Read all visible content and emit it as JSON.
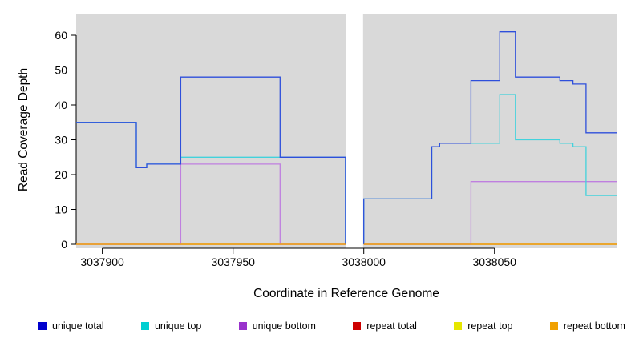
{
  "figure": {
    "x_axis_label": "Coordinate in Reference Genome",
    "y_axis_label": "Read Coverage Depth"
  },
  "chart_data": {
    "type": "line",
    "subtype": "step-coverage-plot",
    "title": "",
    "xlabel": "Coordinate in Reference Genome",
    "ylabel": "Read Coverage Depth",
    "xlim": [
      3037890,
      3038097
    ],
    "ylim": [
      0,
      66
    ],
    "x_ticks": [
      3037900,
      3037950,
      3038000,
      3038050
    ],
    "y_ticks": [
      0,
      10,
      20,
      30,
      40,
      50,
      60
    ],
    "grid": false,
    "background": "#d9d9d9",
    "gap": {
      "from": 3037993,
      "to": 3038000
    },
    "legend_position": "bottom",
    "series": [
      {
        "name": "repeat total",
        "color": "#cc1111",
        "segments": [
          [
            [
              3037890,
              0
            ],
            [
              3037993,
              0
            ]
          ],
          [
            [
              3038000,
              0
            ],
            [
              3038097,
              0
            ]
          ]
        ]
      },
      {
        "name": "repeat top",
        "color": "#e8e800",
        "segments": [
          [
            [
              3037890,
              0
            ],
            [
              3037993,
              0
            ]
          ],
          [
            [
              3038000,
              0
            ],
            [
              3038097,
              0
            ]
          ]
        ]
      },
      {
        "name": "unique bottom",
        "color": "#bf7fdf",
        "segments": [
          [
            [
              3037890,
              0
            ],
            [
              3037930,
              23
            ],
            [
              3037968,
              0
            ],
            [
              3037993,
              0
            ]
          ],
          [
            [
              3038000,
              0
            ],
            [
              3038041,
              18
            ],
            [
              3038097,
              18
            ]
          ]
        ]
      },
      {
        "name": "unique top",
        "color": "#42d2dc",
        "segments": [
          [
            [
              3037890,
              35
            ],
            [
              3037913,
              22
            ],
            [
              3037917,
              23
            ],
            [
              3037930,
              25
            ],
            [
              3037993,
              0
            ]
          ],
          [
            [
              3038000,
              0
            ],
            [
              3038000,
              13
            ],
            [
              3038026,
              28
            ],
            [
              3038029,
              29
            ],
            [
              3038052,
              43
            ],
            [
              3038058,
              30
            ],
            [
              3038075,
              29
            ],
            [
              3038080,
              28
            ],
            [
              3038085,
              14
            ],
            [
              3038097,
              14
            ]
          ]
        ]
      },
      {
        "name": "unique total",
        "color": "#2e4fdb",
        "segments": [
          [
            [
              3037890,
              35
            ],
            [
              3037913,
              22
            ],
            [
              3037917,
              23
            ],
            [
              3037930,
              48
            ],
            [
              3037968,
              25
            ],
            [
              3037993,
              0
            ]
          ],
          [
            [
              3038000,
              0
            ],
            [
              3038000,
              13
            ],
            [
              3038026,
              28
            ],
            [
              3038029,
              29
            ],
            [
              3038041,
              47
            ],
            [
              3038052,
              61
            ],
            [
              3038058,
              48
            ],
            [
              3038075,
              47
            ],
            [
              3038080,
              46
            ],
            [
              3038085,
              32
            ],
            [
              3038097,
              32
            ]
          ]
        ]
      },
      {
        "name": "repeat bottom",
        "color": "#f59d00",
        "segments": [
          [
            [
              3037890,
              0
            ],
            [
              3037993,
              0
            ]
          ],
          [
            [
              3038000,
              0
            ],
            [
              3038097,
              0
            ]
          ]
        ]
      }
    ],
    "legend": [
      {
        "label": "unique total",
        "color": "#0000cd"
      },
      {
        "label": "unique top",
        "color": "#00ced1"
      },
      {
        "label": "unique bottom",
        "color": "#9932cc"
      },
      {
        "label": "repeat total",
        "color": "#cd0000"
      },
      {
        "label": "repeat top",
        "color": "#e6e600"
      },
      {
        "label": "repeat bottom",
        "color": "#f0a000"
      }
    ]
  }
}
